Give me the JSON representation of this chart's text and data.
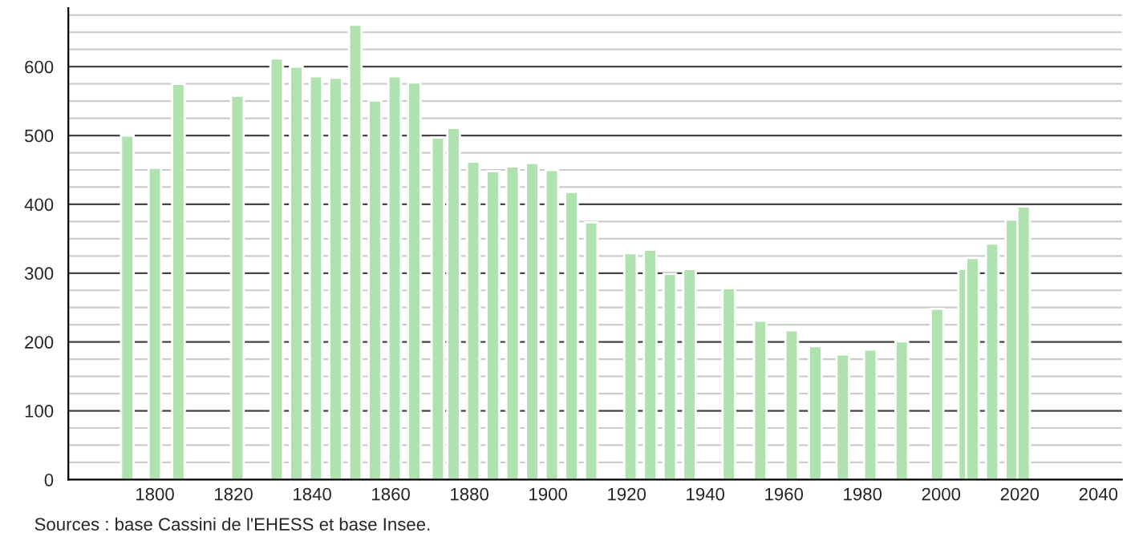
{
  "chart_data": {
    "type": "bar",
    "x": [
      1793,
      1800,
      1806,
      1821,
      1831,
      1836,
      1841,
      1846,
      1851,
      1856,
      1861,
      1866,
      1872,
      1876,
      1881,
      1886,
      1891,
      1896,
      1901,
      1906,
      1911,
      1921,
      1926,
      1931,
      1936,
      1946,
      1954,
      1962,
      1968,
      1975,
      1982,
      1990,
      1999,
      2006,
      2008,
      2013,
      2018,
      2021
    ],
    "values": [
      500,
      453,
      575,
      558,
      612,
      600,
      586,
      584,
      661,
      551,
      586,
      577,
      497,
      511,
      462,
      448,
      455,
      460,
      450,
      418,
      374,
      329,
      334,
      299,
      306,
      278,
      231,
      217,
      194,
      182,
      189,
      201,
      248,
      306,
      322,
      343,
      378,
      397
    ],
    "color": "#b0e2b0",
    "xlim": [
      1778,
      2046
    ],
    "xticks": [
      1800,
      1820,
      1840,
      1860,
      1880,
      1900,
      1920,
      1940,
      1960,
      1980,
      2000,
      2020,
      2040
    ],
    "ylim": [
      0,
      685
    ],
    "yticks": [
      0,
      {
        "value": 25,
        "label": null
      },
      {
        "value": 50,
        "label": null
      },
      {
        "value": 75,
        "label": null
      },
      100,
      {
        "value": 125,
        "label": null
      },
      {
        "value": 150,
        "label": null
      },
      {
        "value": 175,
        "label": null
      },
      200,
      {
        "value": 225,
        "label": null
      },
      {
        "value": 250,
        "label": null
      },
      {
        "value": 275,
        "label": null
      },
      300,
      {
        "value": 325,
        "label": null
      },
      {
        "value": 350,
        "label": null
      },
      {
        "value": 375,
        "label": null
      },
      400,
      {
        "value": 425,
        "label": null
      },
      {
        "value": 450,
        "label": null
      },
      {
        "value": 475,
        "label": null
      },
      500,
      {
        "value": 525,
        "label": null
      },
      {
        "value": 550,
        "label": null
      },
      {
        "value": 575,
        "label": null
      },
      600,
      {
        "value": 625,
        "label": null
      },
      {
        "value": 650,
        "label": null
      },
      {
        "value": 675,
        "label": null
      }
    ],
    "grid": "y",
    "annotations": [
      "Sources : base Cassini de l'EHESS et base Insee."
    ]
  }
}
